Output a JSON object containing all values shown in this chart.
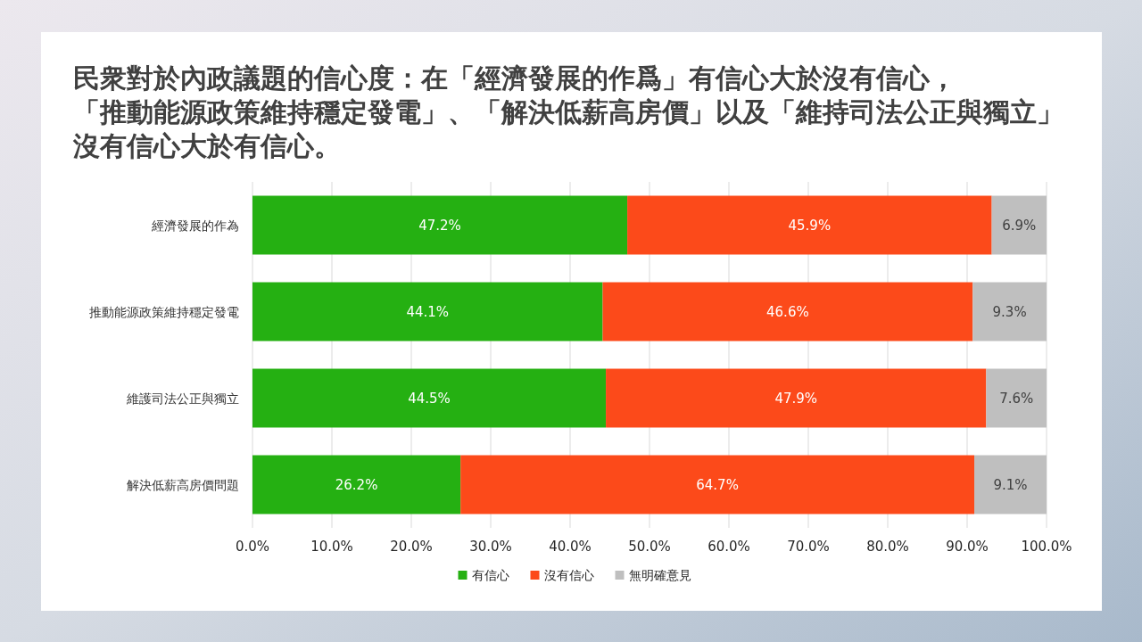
{
  "chart_data": {
    "type": "bar",
    "orientation": "horizontal",
    "stacked": true,
    "title": "民衆對於內政議題的信心度：在「經濟發展的作爲」有信心大於沒有信心，「推動能源政策維持穩定發電」、「解決低薪高房價」以及「維持司法公正與獨立」沒有信心大於有信心。",
    "categories": [
      "經濟發展的作為",
      "推動能源政策維持穩定發電",
      "維護司法公正與獨立",
      "解決低薪高房價問題"
    ],
    "series": [
      {
        "name": "有信心",
        "color": "#25b012",
        "values": [
          47.2,
          44.1,
          44.5,
          26.2
        ],
        "value_labels": [
          "47.2%",
          "44.1%",
          "44.5%",
          "26.2%"
        ]
      },
      {
        "name": "沒有信心",
        "color": "#fc4a1a",
        "values": [
          45.9,
          46.6,
          47.9,
          64.7
        ],
        "value_labels": [
          "45.9%",
          "46.6%",
          "47.9%",
          "64.7%"
        ]
      },
      {
        "name": "無明確意見",
        "color": "#bfbfbf",
        "values": [
          6.9,
          9.3,
          7.6,
          9.1
        ],
        "value_labels": [
          "6.9%",
          "9.3%",
          "7.6%",
          "9.1%"
        ]
      }
    ],
    "xlim": [
      0,
      100
    ],
    "xticks": [
      {
        "value": 0,
        "label": "0.0%"
      },
      {
        "value": 10,
        "label": "10.0%"
      },
      {
        "value": 20,
        "label": "20.0%"
      },
      {
        "value": 30,
        "label": "30.0%"
      },
      {
        "value": 40,
        "label": "40.0%"
      },
      {
        "value": 50,
        "label": "50.0%"
      },
      {
        "value": 60,
        "label": "60.0%"
      },
      {
        "value": 70,
        "label": "70.0%"
      },
      {
        "value": 80,
        "label": "80.0%"
      },
      {
        "value": 90,
        "label": "90.0%"
      },
      {
        "value": 100,
        "label": "100.0%"
      }
    ],
    "grid": "x",
    "legend": "bottom"
  }
}
